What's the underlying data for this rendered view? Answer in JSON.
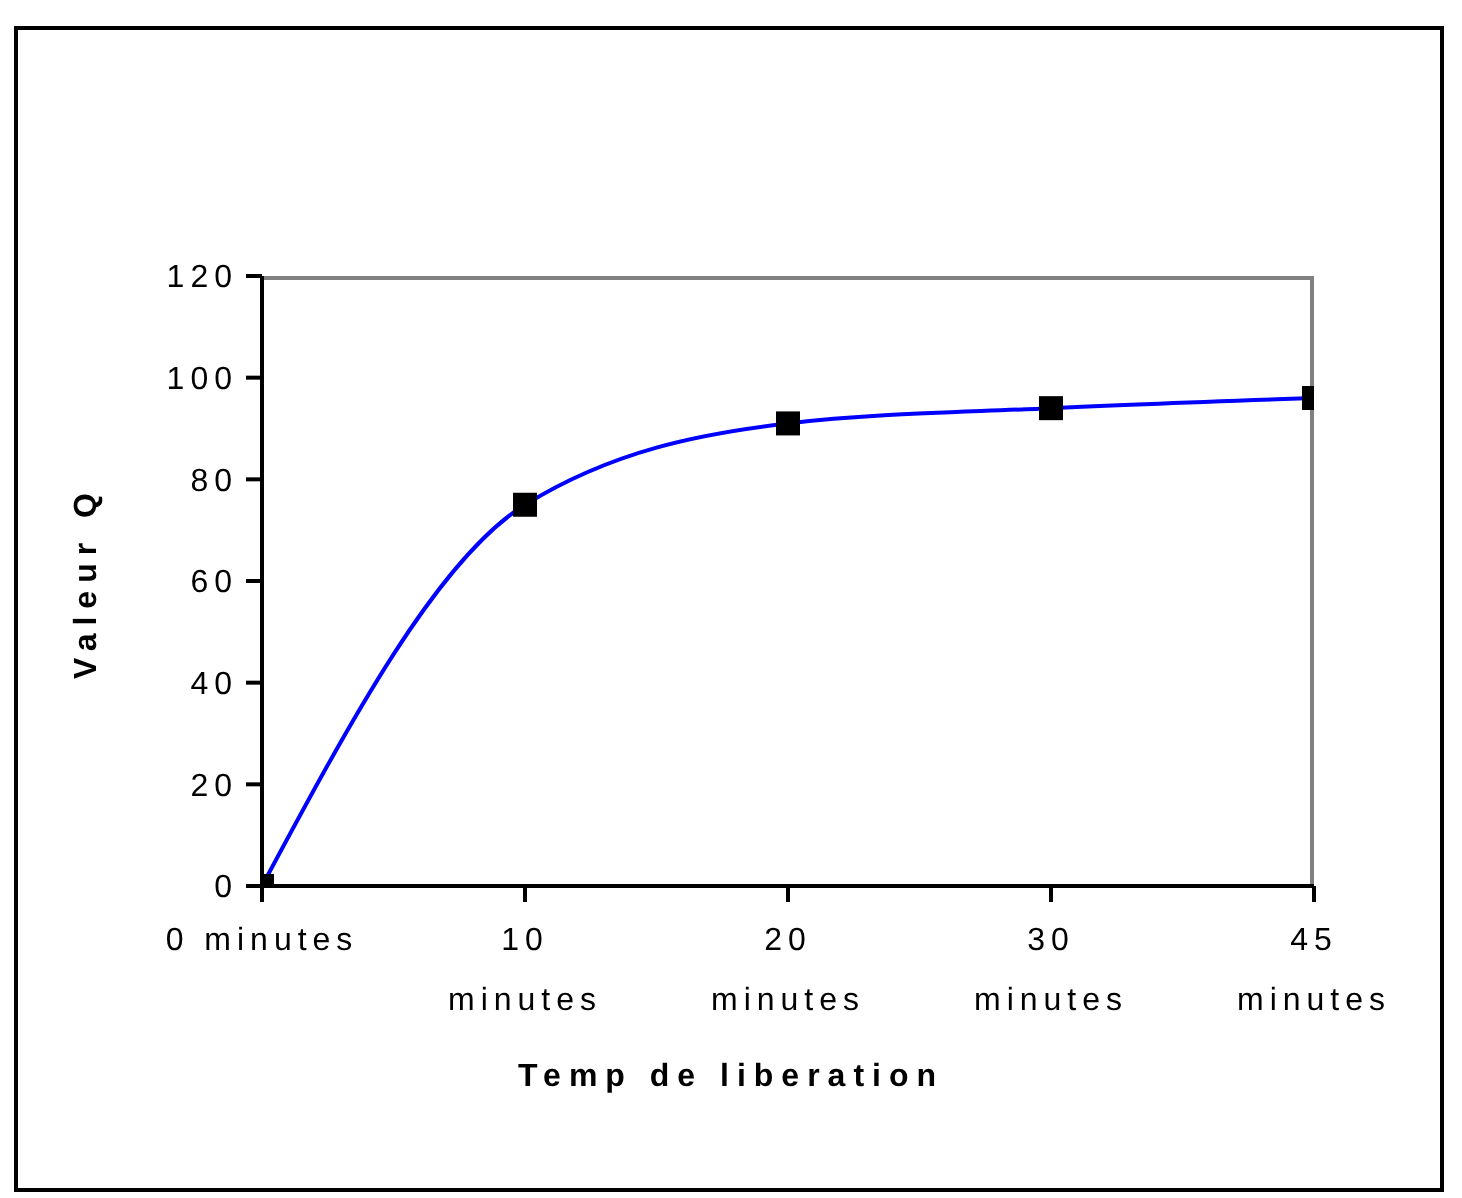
{
  "chart_data": {
    "type": "line",
    "xlabel": "Temp de liberation",
    "ylabel": "Valeur Q",
    "categories": [
      "0 minutes",
      "10 minutes",
      "20 minutes",
      "30 minutes",
      "45 minutes"
    ],
    "series": [
      {
        "color": "#0000ff",
        "values": [
          0,
          75,
          91,
          94,
          96
        ]
      }
    ],
    "ylim": [
      0,
      120
    ],
    "yticks": [
      0,
      20,
      40,
      60,
      80,
      100,
      120
    ],
    "marker": "square",
    "grid": false,
    "legend": false
  }
}
